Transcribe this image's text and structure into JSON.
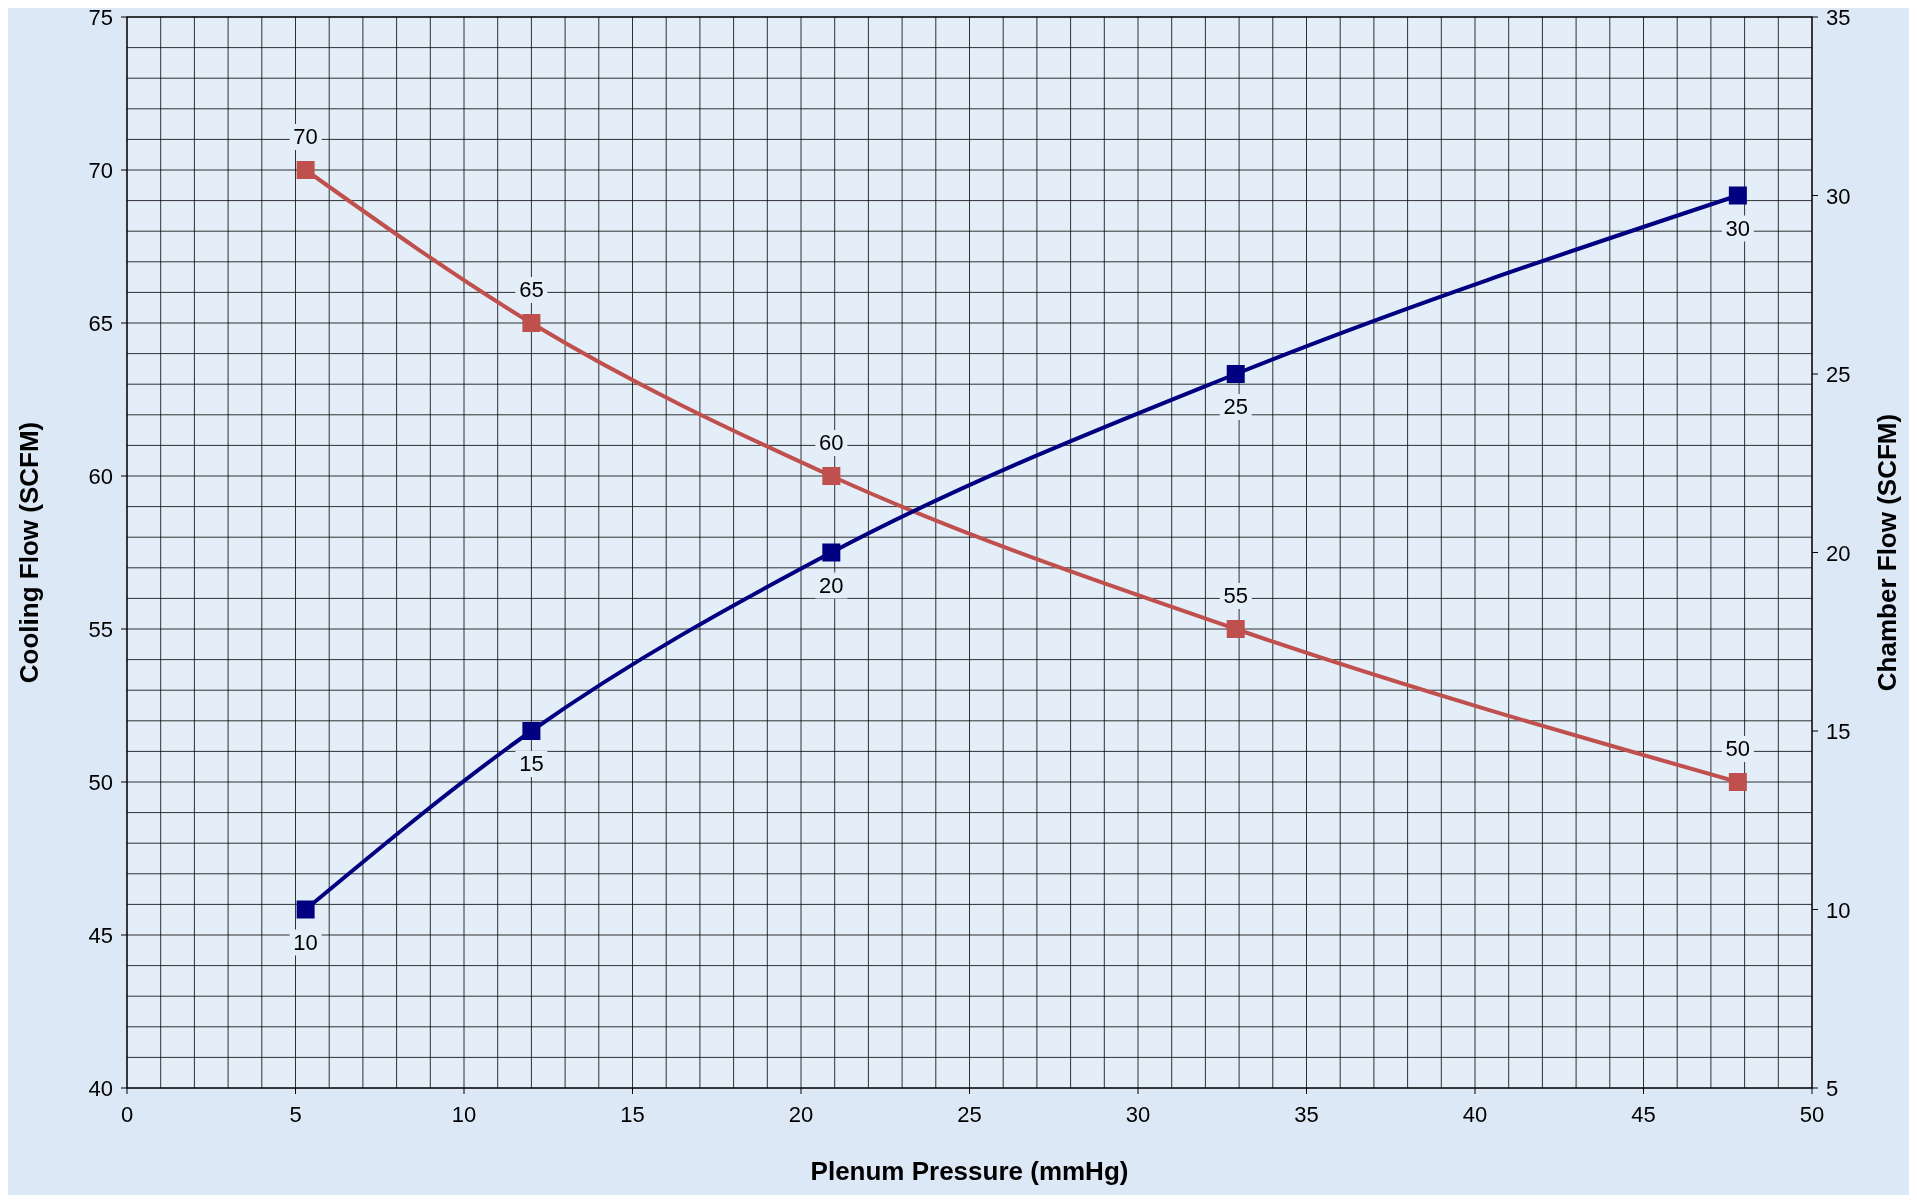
{
  "chart_data": {
    "type": "line",
    "xlabel": "Plenum Pressure (mmHg)",
    "ylabel": "Cooling Flow (SCFM)",
    "y2label": "Chamber Flow (SCFM)",
    "x": [
      5.3,
      12,
      20.9,
      32.9,
      47.8
    ],
    "series": [
      {
        "color": "#c0504d",
        "values": [
          70,
          65,
          60,
          55,
          50
        ]
      },
      {
        "color": "#000080",
        "axis": "y2",
        "values": [
          10,
          15,
          20,
          25,
          30
        ]
      }
    ],
    "xlim": [
      0,
      50
    ],
    "xticks": [
      0,
      5,
      10,
      15,
      20,
      25,
      30,
      35,
      40,
      45,
      50
    ],
    "ylim": [
      40,
      75
    ],
    "yticks": [
      40,
      45,
      50,
      55,
      60,
      65,
      70,
      75
    ],
    "y2lim": [
      5,
      35
    ],
    "y2ticks": [
      5,
      10,
      15,
      20,
      25,
      30,
      35
    ],
    "grid": true,
    "marker": "square",
    "line_style": "solid",
    "data_labels": true
  }
}
